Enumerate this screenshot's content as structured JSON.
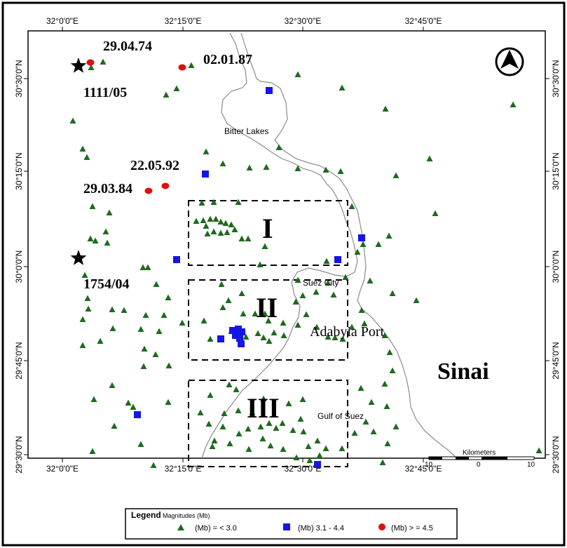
{
  "map": {
    "longitude_labels": [
      "32°0'0\"E",
      "32°15'0\"E",
      "32°30'0\"E",
      "32°45'0\"E"
    ],
    "latitude_labels": [
      "30°30'0\"N",
      "30°15'0\"N",
      "30°0'0\"N",
      "29°45'0\"N",
      "29°30'0\"N"
    ],
    "place_labels": {
      "bitter_lakes": "Bitter Lakes",
      "suez_city": "Suez City",
      "adabyia_port": "Adabyia Port",
      "gulf_of_suez": "Gulf of Suez",
      "sinai": "Sinai"
    },
    "zones": [
      "I",
      "II",
      "III"
    ],
    "events": [
      {
        "date": "29.04.74",
        "type": "Mb >= 4.5"
      },
      {
        "date": "02.01.87",
        "type": "Mb >= 4.5"
      },
      {
        "date": "22.05.92",
        "type": "Mb >= 4.5"
      },
      {
        "date": "29.03.84",
        "type": "Mb >= 4.5"
      },
      {
        "date": "1111/05",
        "type": "historical"
      },
      {
        "date": "1754/04",
        "type": "historical"
      }
    ],
    "north_arrow": "N",
    "scale_bar": {
      "title": "Kilometers",
      "labels": [
        "10",
        "0",
        "10"
      ]
    }
  },
  "legend": {
    "title": "Legend",
    "subtitle": "Magnitudes (Mb)",
    "items": [
      {
        "label": "(Mb) = < 3.0",
        "symbol": "triangle",
        "color": "#1e6b1e"
      },
      {
        "label": "(Mb) 3.1 - 4.4",
        "symbol": "square",
        "color": "#1515e6"
      },
      {
        "label": "(Mb) > = 4.5",
        "symbol": "circle",
        "color": "#e01010"
      }
    ]
  },
  "colors": {
    "triangle": "#1e6b1e",
    "square": "#1515e6",
    "circle": "#e01010",
    "coast": "#8a8a8a"
  }
}
